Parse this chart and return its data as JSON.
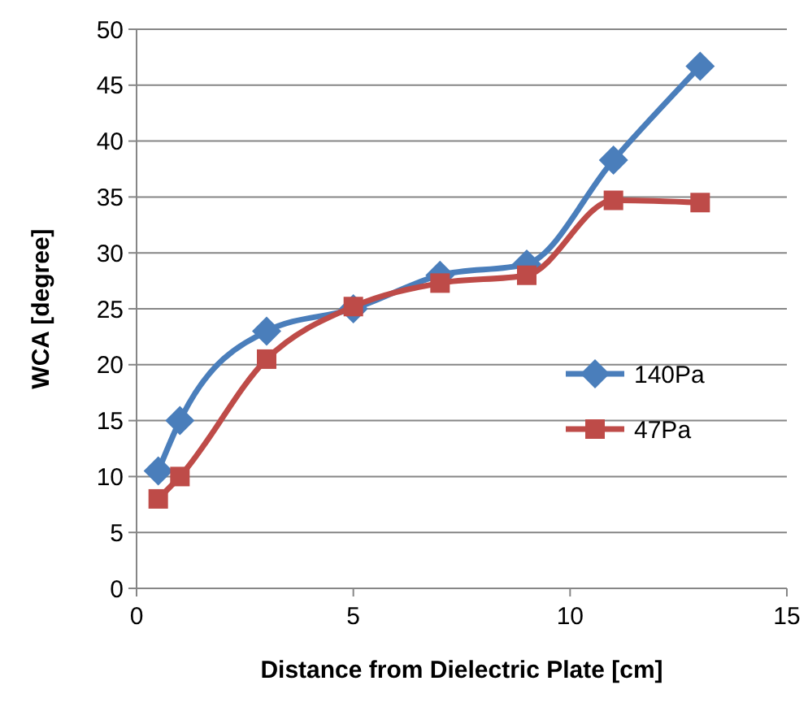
{
  "chart_data": {
    "type": "line",
    "xlabel": "Distance from Dielectric Plate [cm]",
    "ylabel": "WCA [degree]",
    "xlim": [
      0,
      15
    ],
    "xticks": [
      0,
      5,
      10,
      15
    ],
    "ylim": [
      0,
      50
    ],
    "yticks": [
      0,
      5,
      10,
      15,
      20,
      25,
      30,
      35,
      40,
      45,
      50
    ],
    "grid": "y",
    "legend": "right",
    "line_style": "solid",
    "series": [
      {
        "name": "140Pa",
        "color": "#4a7ebb",
        "marker": "diamond",
        "x": [
          0.5,
          1,
          3,
          5,
          7,
          9,
          11,
          13
        ],
        "values": [
          10.5,
          15,
          23,
          25,
          28,
          29,
          38.3,
          46.7
        ]
      },
      {
        "name": "47Pa",
        "color": "#be4b48",
        "marker": "square",
        "x": [
          0.5,
          1,
          3,
          5,
          7,
          9,
          11,
          13
        ],
        "values": [
          8,
          10,
          20.5,
          25.2,
          27.3,
          28,
          34.7,
          34.5
        ]
      }
    ]
  }
}
